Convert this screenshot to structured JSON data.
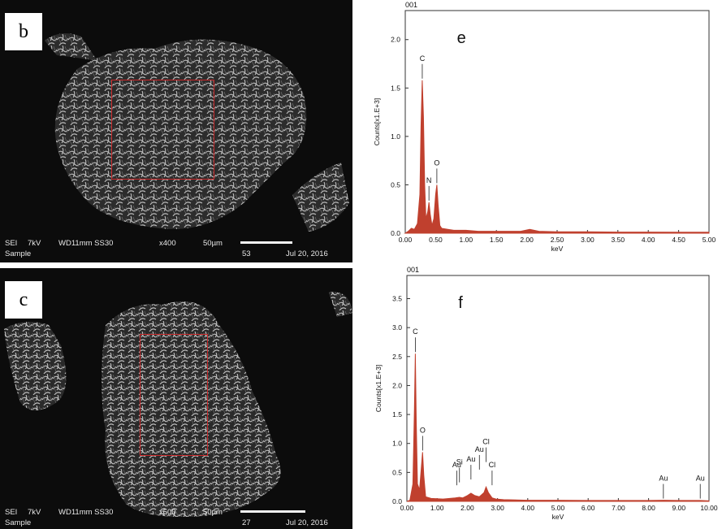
{
  "panels": {
    "b": {
      "letter": "b",
      "info_row1": [
        "SEI",
        "7kV",
        "WD11mm SS30",
        "x400",
        "50µm"
      ],
      "info_row2": [
        "Sample",
        "53",
        "Jul 20, 2016"
      ]
    },
    "c": {
      "letter": "c",
      "info_row1": [
        "SEI",
        "7kV",
        "WD11mm SS30",
        "x500",
        "50µm"
      ],
      "info_row2": [
        "Sample",
        "27",
        "Jul 20, 2016"
      ]
    }
  },
  "chart_data": [
    {
      "type": "line",
      "panel_letter": "e",
      "spectrum_id": "001",
      "xlabel": "keV",
      "ylabel": "Counts[x1.E+3]",
      "xlim": [
        0,
        5
      ],
      "ylim": [
        0,
        2.3
      ],
      "xticks": [
        "0.00",
        "0.50",
        "1.00",
        "1.50",
        "2.00",
        "2.50",
        "3.00",
        "3.50",
        "4.00",
        "4.50",
        "5.00"
      ],
      "yticks": [
        "0.0",
        "0.5",
        "1.0",
        "1.5",
        "2.0"
      ],
      "peaks": [
        {
          "label": "C",
          "x": 0.28,
          "y": 1.58
        },
        {
          "label": "N",
          "x": 0.39,
          "y": 0.32
        },
        {
          "label": "O",
          "x": 0.52,
          "y": 0.5
        }
      ],
      "x": [
        0,
        0.05,
        0.1,
        0.15,
        0.2,
        0.24,
        0.26,
        0.28,
        0.3,
        0.32,
        0.34,
        0.37,
        0.39,
        0.41,
        0.44,
        0.47,
        0.5,
        0.52,
        0.54,
        0.57,
        0.6,
        0.7,
        0.8,
        1.0,
        1.2,
        1.5,
        1.9,
        2.05,
        2.2,
        2.5,
        3.0,
        3.5,
        4.0,
        4.5,
        5.0
      ],
      "y": [
        0,
        0.02,
        0.05,
        0.04,
        0.1,
        0.4,
        1.1,
        1.58,
        1.2,
        0.5,
        0.15,
        0.22,
        0.32,
        0.2,
        0.08,
        0.15,
        0.4,
        0.5,
        0.3,
        0.08,
        0.05,
        0.04,
        0.03,
        0.03,
        0.02,
        0.02,
        0.02,
        0.04,
        0.02,
        0.015,
        0.015,
        0.012,
        0.012,
        0.01,
        0.01
      ]
    },
    {
      "type": "line",
      "panel_letter": "f",
      "spectrum_id": "001",
      "xlabel": "keV",
      "ylabel": "Counts[x1.E+3]",
      "xlim": [
        0,
        10
      ],
      "ylim": [
        0,
        3.9
      ],
      "xticks": [
        "0.00",
        "1.00",
        "2.00",
        "3.00",
        "4.00",
        "5.00",
        "6.00",
        "7.00",
        "8.00",
        "9.00",
        "10.00"
      ],
      "yticks": [
        "0.0",
        "0.5",
        "1.0",
        "1.5",
        "2.0",
        "2.5",
        "3.0",
        "3.5"
      ],
      "peaks": [
        {
          "label": "C",
          "x": 0.28,
          "y": 2.55
        },
        {
          "label": "O",
          "x": 0.52,
          "y": 0.85
        },
        {
          "label": "Si",
          "x": 1.74,
          "y": 0.3
        },
        {
          "label": "Au",
          "x": 1.65,
          "y": 0.25
        },
        {
          "label": "Au",
          "x": 2.12,
          "y": 0.35
        },
        {
          "label": "Au",
          "x": 2.4,
          "y": 0.52
        },
        {
          "label": "Cl",
          "x": 2.62,
          "y": 0.65
        },
        {
          "label": "Cl",
          "x": 2.82,
          "y": 0.25
        },
        {
          "label": "Au",
          "x": 8.49,
          "y": 0.02
        },
        {
          "label": "Au",
          "x": 9.71,
          "y": 0.02
        }
      ],
      "x": [
        0,
        0.1,
        0.2,
        0.25,
        0.28,
        0.31,
        0.35,
        0.42,
        0.48,
        0.52,
        0.56,
        0.62,
        0.8,
        1.2,
        1.6,
        1.74,
        1.85,
        2.0,
        2.12,
        2.25,
        2.4,
        2.55,
        2.62,
        2.7,
        2.82,
        2.95,
        3.2,
        4.0,
        5.0,
        6.0,
        7.0,
        8.0,
        8.5,
        9.0,
        9.7,
        10.0
      ],
      "y": [
        0,
        0.02,
        0.3,
        1.6,
        2.55,
        1.4,
        0.3,
        0.2,
        0.6,
        0.85,
        0.45,
        0.08,
        0.05,
        0.04,
        0.06,
        0.07,
        0.06,
        0.1,
        0.14,
        0.1,
        0.08,
        0.15,
        0.25,
        0.15,
        0.06,
        0.04,
        0.03,
        0.02,
        0.02,
        0.015,
        0.015,
        0.015,
        0.02,
        0.015,
        0.015,
        0.01
      ]
    }
  ],
  "colors": {
    "spectrum": "#c0402e",
    "roi": "#c8282a"
  }
}
